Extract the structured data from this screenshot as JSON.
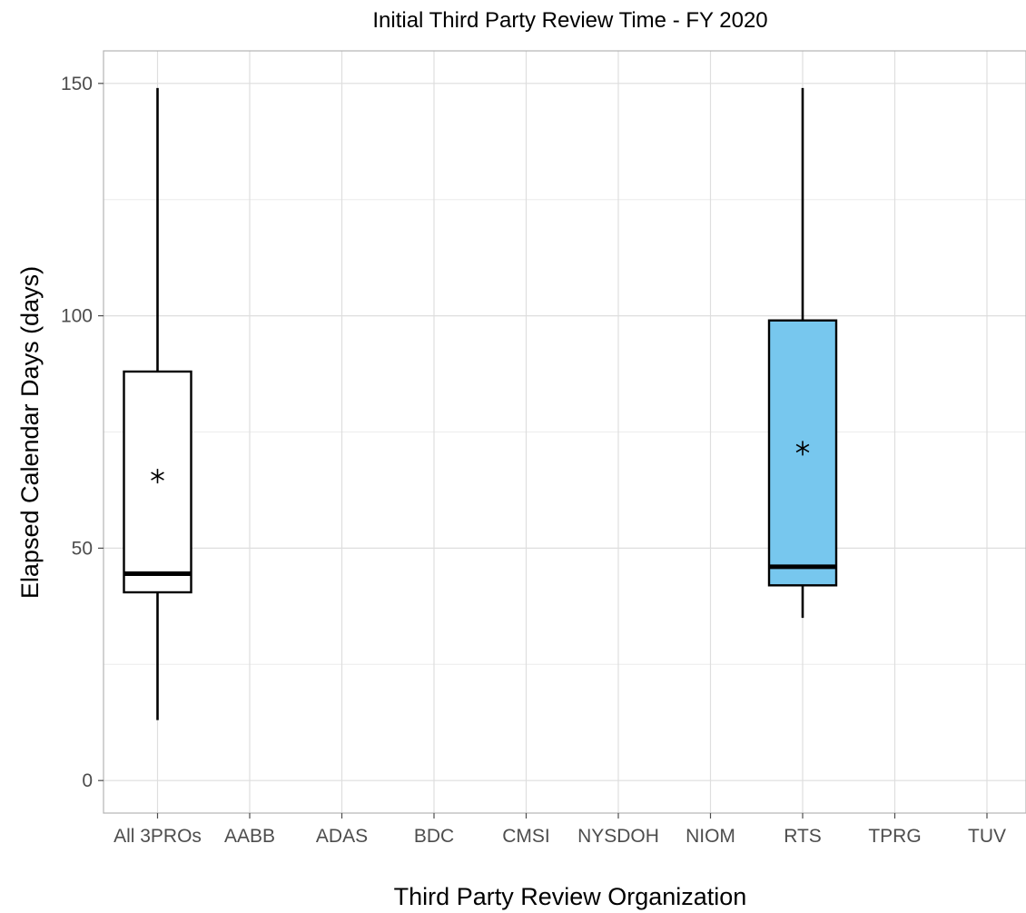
{
  "chart_data": {
    "type": "boxplot",
    "title": "Initial Third Party Review Time - FY 2020",
    "xlabel": "Third Party Review Organization",
    "ylabel": "Elapsed Calendar Days (days)",
    "categories": [
      "All 3PROs",
      "AABB",
      "ADAS",
      "BDC",
      "CMSI",
      "NYSDOH",
      "NIOM",
      "RTS",
      "TPRG",
      "TUV"
    ],
    "ylim": [
      -7,
      157
    ],
    "yticks": [
      0,
      50,
      100,
      150
    ],
    "ytick_labels": [
      "0",
      "50",
      "100",
      "150"
    ],
    "grid": true,
    "legend": "none",
    "boxes": [
      {
        "category": "All 3PROs",
        "whisker_low": 13,
        "q1": 40.5,
        "median": 44.5,
        "q3": 88,
        "whisker_high": 149,
        "mean": 65.5,
        "fill": "#ffffff"
      },
      {
        "category": "RTS",
        "whisker_low": 35,
        "q1": 42,
        "median": 46,
        "q3": 99,
        "whisker_high": 149,
        "mean": 71.5,
        "fill": "#77c7ee"
      }
    ]
  }
}
